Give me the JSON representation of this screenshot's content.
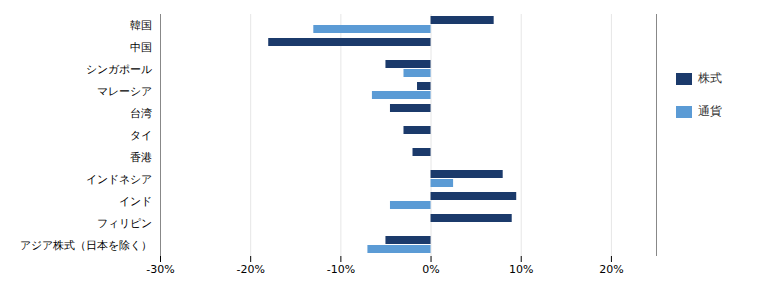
{
  "chart_data": {
    "type": "bar",
    "orientation": "horizontal",
    "categories": [
      "韓国",
      "中国",
      "シンガポール",
      "マレーシア",
      "台湾",
      "タイ",
      "香港",
      "インドネシア",
      "インド",
      "フィリピン",
      "アジア株式（日本を除く）"
    ],
    "series": [
      {
        "name": "株式",
        "color": "#1b3a6b",
        "values": [
          7.0,
          -18.0,
          -5.0,
          -1.5,
          -4.5,
          -3.0,
          -2.0,
          8.0,
          9.5,
          9.0,
          -5.0
        ]
      },
      {
        "name": "通貨",
        "color": "#5b9bd5",
        "values": [
          -13.0,
          0.0,
          -3.0,
          -6.5,
          0.0,
          0.0,
          0.0,
          2.5,
          -4.5,
          0.0,
          -7.0
        ]
      }
    ],
    "xlim": [
      -30,
      25
    ],
    "xticks": [
      {
        "value": -30,
        "label": "-30%"
      },
      {
        "value": -20,
        "label": "-20%"
      },
      {
        "value": -10,
        "label": "-10%"
      },
      {
        "value": 0,
        "label": "0%"
      },
      {
        "value": 10,
        "label": "10%"
      },
      {
        "value": 20,
        "label": "20%"
      }
    ],
    "grid": true,
    "legend": "right"
  }
}
